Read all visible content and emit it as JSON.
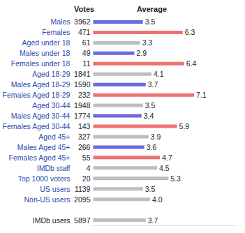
{
  "chart_data": {
    "type": "bar",
    "orientation": "horizontal",
    "votes_header": "Votes",
    "values_header": "Average",
    "categories": [
      "Males",
      "Females",
      "Aged under 18",
      "Males under 18",
      "Females under 18",
      "Aged 18-29",
      "Males Aged 18-29",
      "Females Aged 18-29",
      "Aged 30-44",
      "Males Aged 30-44",
      "Females Aged 30-44",
      "Aged 45+",
      "Males Aged 45+",
      "Females Aged 45+",
      "IMDb staff",
      "Top 1000 voters",
      "US users",
      "Non-US users",
      "IMDb users"
    ],
    "votes": [
      3962,
      471,
      61,
      49,
      11,
      1841,
      1590,
      232,
      1948,
      1774,
      143,
      327,
      266,
      55,
      4,
      20,
      1139,
      2095,
      5897
    ],
    "values": [
      3.5,
      6.3,
      3.3,
      2.9,
      6.4,
      4.1,
      3.7,
      7.1,
      3.5,
      3.4,
      5.9,
      3.9,
      3.6,
      4.7,
      4.5,
      5.3,
      3.5,
      4.0,
      3.7
    ],
    "value_labels": [
      "3.5",
      "6.3",
      "3.3",
      "2.9",
      "6.4",
      "4.1",
      "3.7",
      "7.1",
      "3.5",
      "3.4",
      "5.9",
      "3.9",
      "3.6",
      "4.7",
      "4.5",
      "5.3",
      "3.5",
      "4.0",
      "3.7"
    ],
    "colors": [
      "#6b6bde",
      "#f07171",
      "#bdbdbd",
      "#6b6bde",
      "#f07171",
      "#bdbdbd",
      "#6b6bde",
      "#f07171",
      "#bdbdbd",
      "#6b6bde",
      "#f07171",
      "#bdbdbd",
      "#6b6bde",
      "#f07171",
      "#bdbdbd",
      "#bdbdbd",
      "#bdbdbd",
      "#bdbdbd",
      "#bdbdbd"
    ],
    "xlim": [
      0,
      10
    ],
    "data_labels": true,
    "tick_labels": false,
    "grid": false
  }
}
